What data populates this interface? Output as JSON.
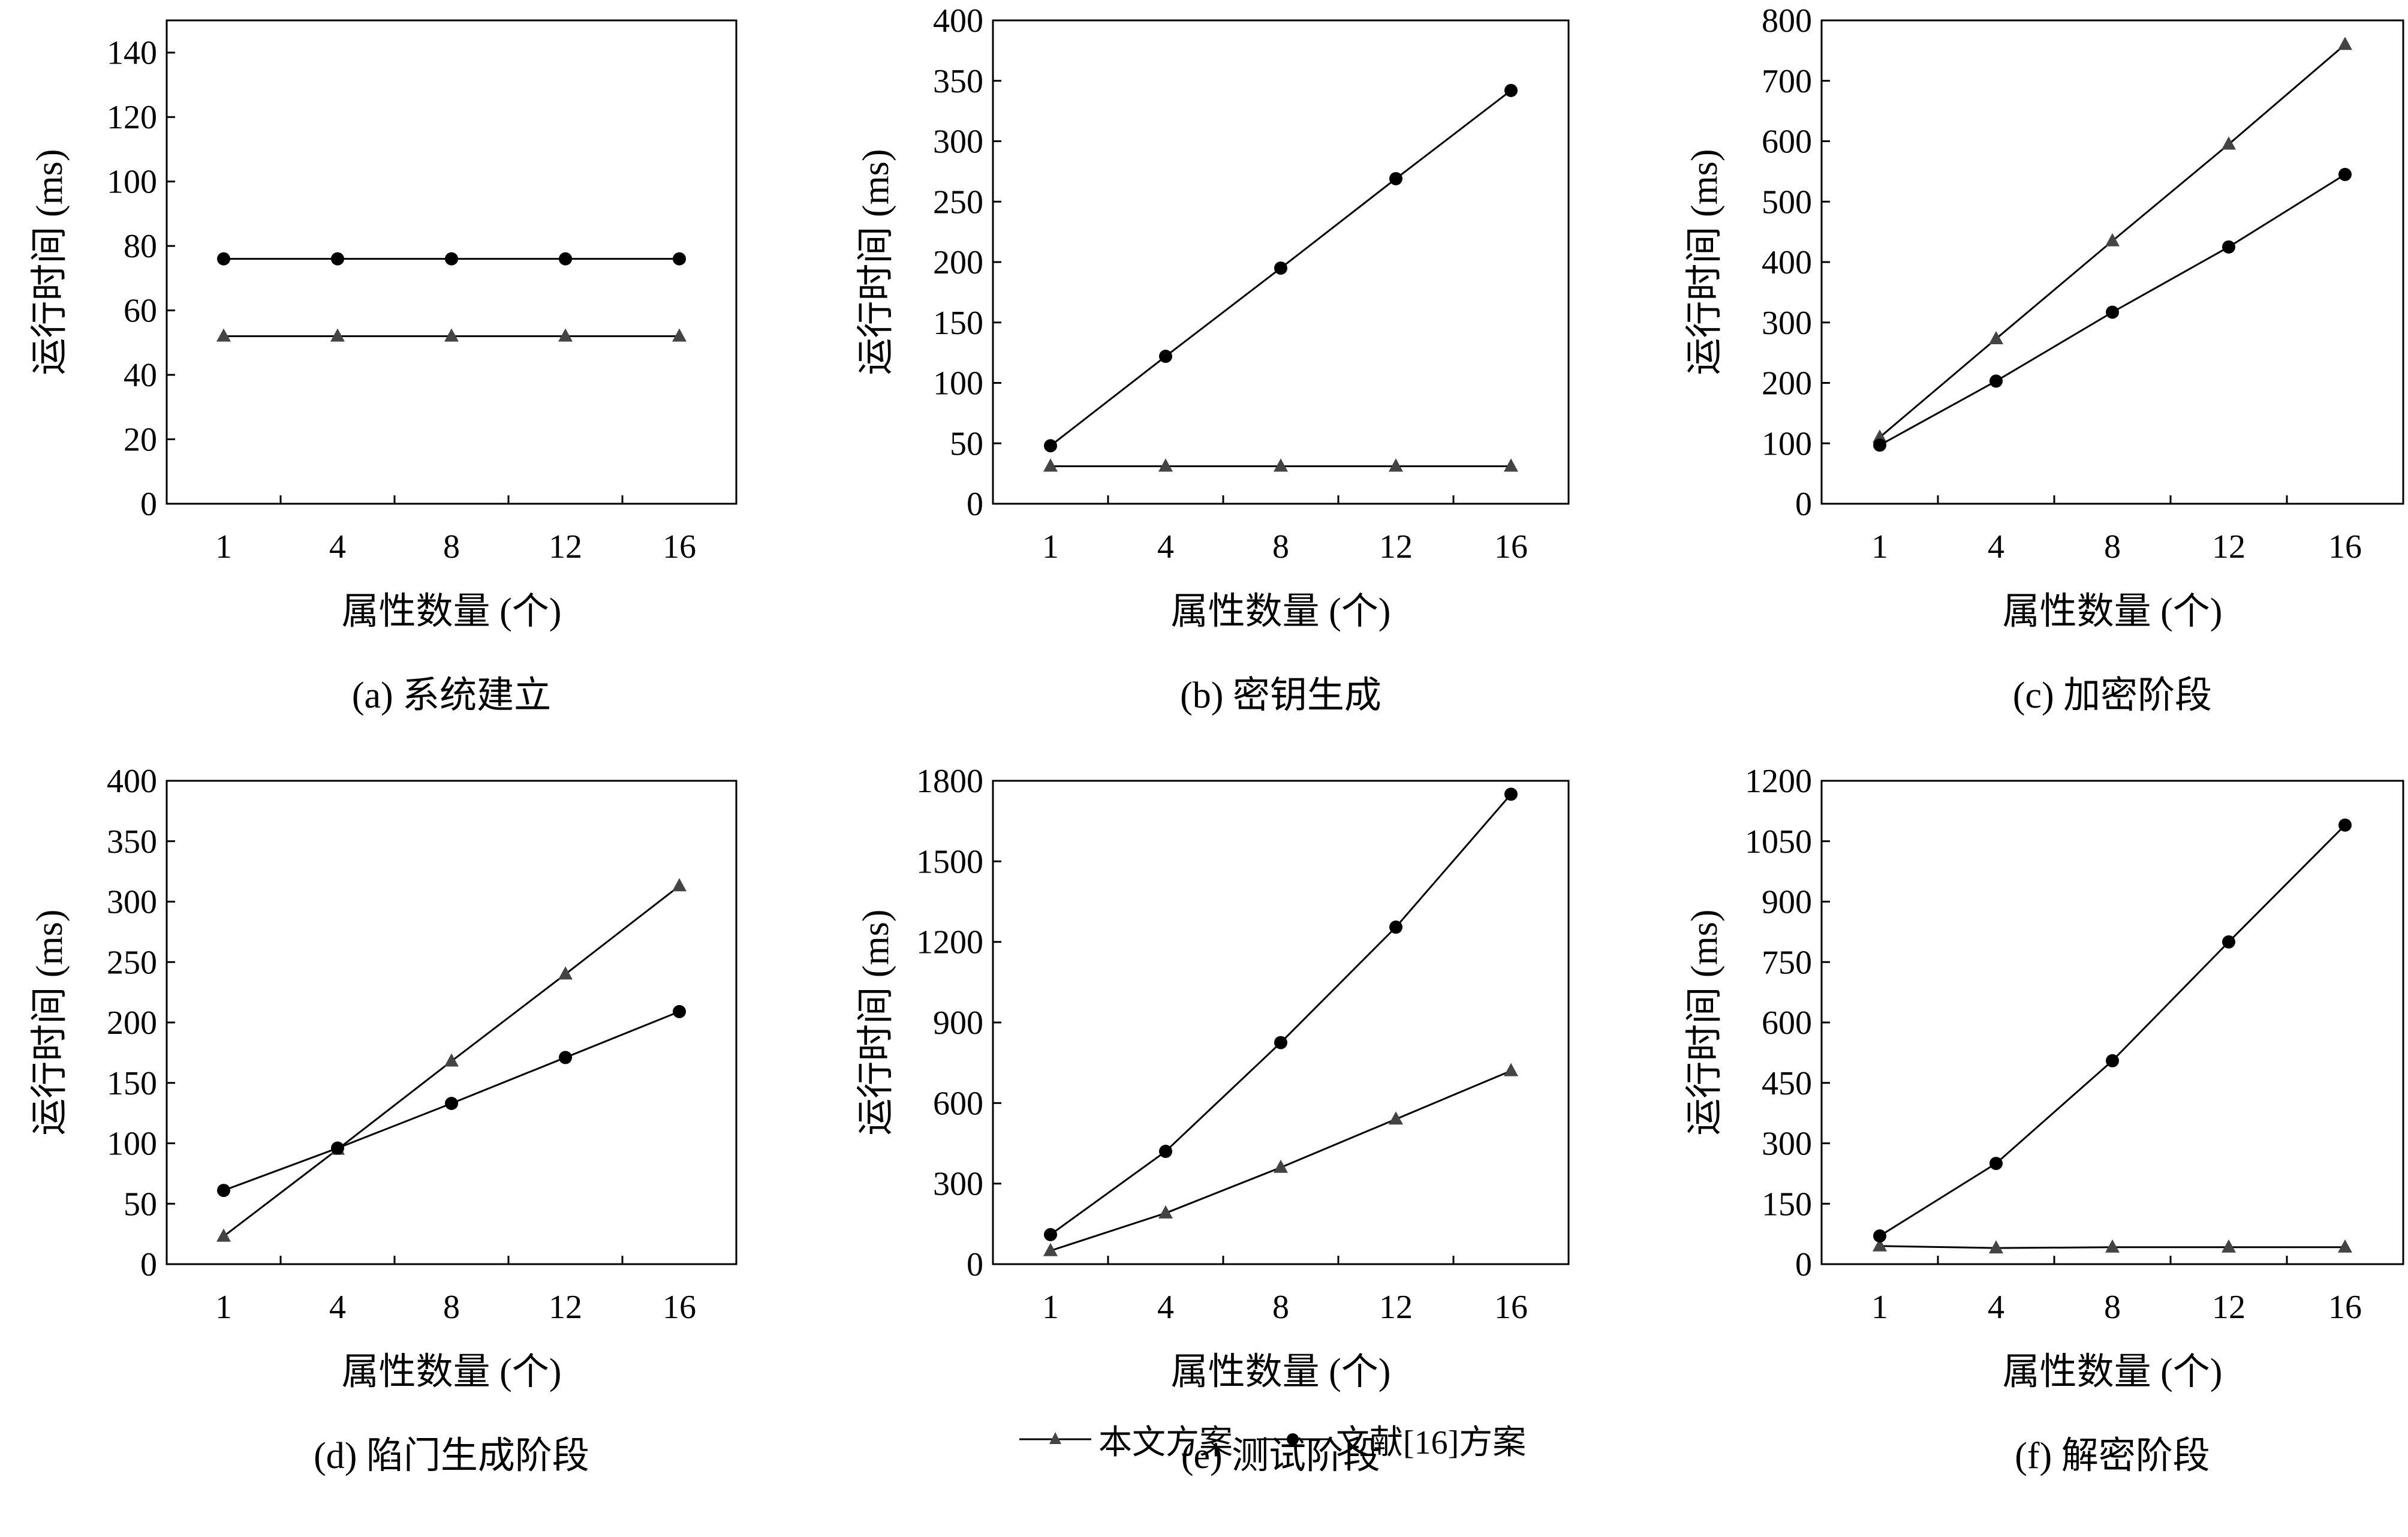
{
  "legend": {
    "series_a": "本文方案",
    "series_b": "文献[16]方案"
  },
  "chart_data": [
    {
      "type": "line",
      "caption": "(a) 系统建立",
      "xlabel": "属性数量 (个)",
      "ylabel": "运行时间 (ms)",
      "categories": [
        "1",
        "4",
        "8",
        "12",
        "16"
      ],
      "ylim": [
        0,
        150
      ],
      "yticks": [
        0,
        20,
        40,
        60,
        80,
        100,
        120,
        140
      ],
      "series": [
        {
          "name": "本文方案",
          "marker": "triangle",
          "values": [
            52,
            52,
            52,
            52,
            52
          ]
        },
        {
          "name": "文献[16]方案",
          "marker": "circle",
          "values": [
            76,
            76,
            76,
            76,
            76
          ]
        }
      ]
    },
    {
      "type": "line",
      "caption": "(b) 密钥生成",
      "xlabel": "属性数量 (个)",
      "ylabel": "运行时间 (ms)",
      "categories": [
        "1",
        "4",
        "8",
        "12",
        "16"
      ],
      "ylim": [
        0,
        400
      ],
      "yticks": [
        0,
        50,
        100,
        150,
        200,
        250,
        300,
        350,
        400
      ],
      "series": [
        {
          "name": "本文方案",
          "marker": "triangle",
          "values": [
            31,
            31,
            31,
            31,
            31
          ]
        },
        {
          "name": "文献[16]方案",
          "marker": "circle",
          "values": [
            48,
            122,
            195,
            269,
            342
          ]
        }
      ]
    },
    {
      "type": "line",
      "caption": "(c) 加密阶段",
      "xlabel": "属性数量 (个)",
      "ylabel": "运行时间 (ms)",
      "categories": [
        "1",
        "4",
        "8",
        "12",
        "16"
      ],
      "ylim": [
        0,
        800
      ],
      "yticks": [
        0,
        100,
        200,
        300,
        400,
        500,
        600,
        700,
        800
      ],
      "series": [
        {
          "name": "本文方案",
          "marker": "triangle",
          "values": [
            110,
            273,
            435,
            595,
            760
          ]
        },
        {
          "name": "文献[16]方案",
          "marker": "circle",
          "values": [
            97,
            203,
            317,
            425,
            545
          ]
        }
      ]
    },
    {
      "type": "line",
      "caption": "(d) 陷门生成阶段",
      "xlabel": "属性数量 (个)",
      "ylabel": "运行时间 (ms)",
      "categories": [
        "1",
        "4",
        "8",
        "12",
        "16"
      ],
      "ylim": [
        0,
        400
      ],
      "yticks": [
        0,
        50,
        100,
        150,
        200,
        250,
        300,
        350,
        400
      ],
      "series": [
        {
          "name": "本文方案",
          "marker": "triangle",
          "values": [
            23,
            95,
            168,
            240,
            313
          ]
        },
        {
          "name": "文献[16]方案",
          "marker": "circle",
          "values": [
            61,
            96,
            133,
            171,
            209
          ]
        }
      ]
    },
    {
      "type": "line",
      "caption": "(e) 测试阶段",
      "xlabel": "属性数量 (个)",
      "ylabel": "运行时间 (ms)",
      "categories": [
        "1",
        "4",
        "8",
        "12",
        "16"
      ],
      "ylim": [
        0,
        1800
      ],
      "yticks": [
        0,
        300,
        600,
        900,
        1200,
        1500,
        1800
      ],
      "series": [
        {
          "name": "本文方案",
          "marker": "triangle",
          "values": [
            50,
            190,
            360,
            540,
            720
          ]
        },
        {
          "name": "文献[16]方案",
          "marker": "circle",
          "values": [
            110,
            420,
            825,
            1255,
            1750
          ]
        }
      ]
    },
    {
      "type": "line",
      "caption": "(f) 解密阶段",
      "xlabel": "属性数量 (个)",
      "ylabel": "运行时间 (ms)",
      "categories": [
        "1",
        "4",
        "8",
        "12",
        "16"
      ],
      "ylim": [
        0,
        1200
      ],
      "yticks": [
        0,
        150,
        300,
        450,
        600,
        750,
        900,
        1050,
        1200
      ],
      "series": [
        {
          "name": "本文方案",
          "marker": "triangle",
          "values": [
            45,
            40,
            42,
            42,
            42
          ]
        },
        {
          "name": "文献[16]方案",
          "marker": "circle",
          "values": [
            70,
            250,
            505,
            800,
            1090
          ]
        }
      ]
    }
  ]
}
